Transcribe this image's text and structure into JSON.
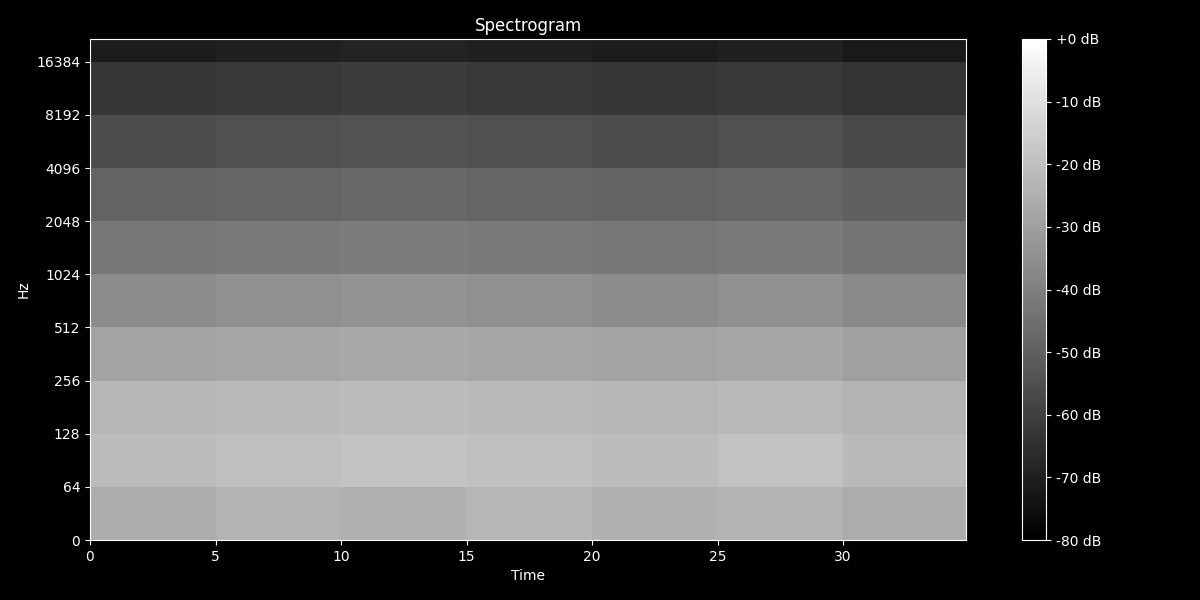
{
  "chart_data": {
    "type": "heatmap",
    "title": "Spectrogram",
    "x_label": "Time",
    "y_label": "Hz",
    "log": "y",
    "x_edges": [
      0,
      5,
      10,
      15,
      20,
      25,
      30,
      34.9
    ],
    "y_edges": [
      0,
      64,
      128,
      256,
      512,
      1024,
      2048,
      4096,
      8192,
      16384,
      22050
    ],
    "cells": [
      [
        -26,
        -24,
        -25,
        -23,
        -25,
        -24,
        -26
      ],
      [
        -21,
        -20,
        -19,
        -20,
        -21,
        -19,
        -22
      ],
      [
        -23,
        -22,
        -21,
        -22,
        -23,
        -22,
        -24
      ],
      [
        -29,
        -28,
        -27,
        -28,
        -29,
        -28,
        -30
      ],
      [
        -36,
        -35,
        -34,
        -35,
        -36,
        -35,
        -37
      ],
      [
        -43,
        -42,
        -41,
        -42,
        -43,
        -42,
        -44
      ],
      [
        -49,
        -48,
        -47,
        -48,
        -49,
        -48,
        -50
      ],
      [
        -56,
        -55,
        -54,
        -55,
        -56,
        -55,
        -57
      ],
      [
        -63,
        -62,
        -61,
        -62,
        -63,
        -62,
        -64
      ],
      [
        -71,
        -70,
        -69,
        -70,
        -71,
        -70,
        -72
      ]
    ],
    "xlim": [
      0,
      34.9
    ],
    "ylim": [
      0,
      22050
    ],
    "xticks": [
      0,
      5,
      10,
      15,
      20,
      25,
      30
    ],
    "yticks": [
      0,
      64,
      128,
      256,
      512,
      1024,
      2048,
      4096,
      8192,
      16384
    ],
    "colorbar": {
      "range": [
        -80,
        0
      ],
      "ticks": [
        {
          "value": 0,
          "label": "+0 dB"
        },
        {
          "value": -10,
          "label": "-10 dB"
        },
        {
          "value": -20,
          "label": "-20 dB"
        },
        {
          "value": -30,
          "label": "-30 dB"
        },
        {
          "value": -40,
          "label": "-40 dB"
        },
        {
          "value": -50,
          "label": "-50 dB"
        },
        {
          "value": -60,
          "label": "-60 dB"
        },
        {
          "value": -70,
          "label": "-70 dB"
        },
        {
          "value": -80,
          "label": "-80 dB"
        }
      ]
    }
  }
}
